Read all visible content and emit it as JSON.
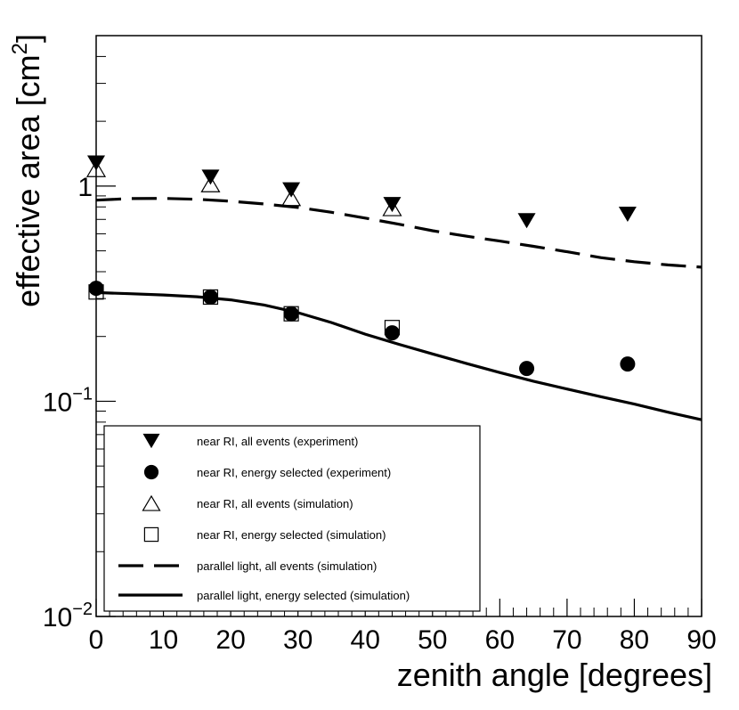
{
  "chart_data": {
    "type": "scatter",
    "title": "",
    "xlabel": "zenith angle [degrees]",
    "ylabel": "effective area [cm",
    "ylabel_sup": "2",
    "ylabel_close": "]",
    "xlim": [
      0,
      90
    ],
    "ylim": [
      0.01,
      5
    ],
    "yscale": "log",
    "grid": false,
    "legend_position": "bottom-left",
    "x_ticks": [
      0,
      10,
      20,
      30,
      40,
      50,
      60,
      70,
      80,
      90
    ],
    "x_tick_labels": [
      "0",
      "10",
      "20",
      "30",
      "40",
      "50",
      "60",
      "70",
      "80",
      "90"
    ],
    "y_ticks": [
      {
        "value": 1,
        "base": "1",
        "exp": ""
      },
      {
        "value": 0.1,
        "base": "10",
        "exp": "−1"
      },
      {
        "value": 0.01,
        "base": "10",
        "exp": "−2"
      }
    ],
    "series": [
      {
        "name": "near RI, all events (experiment)",
        "marker": "filled-triangle-down",
        "x": [
          0,
          17,
          29,
          44,
          64,
          79
        ],
        "y": [
          1.28,
          1.1,
          0.96,
          0.82,
          0.69,
          0.74
        ]
      },
      {
        "name": "near RI, energy selected (experiment)",
        "marker": "filled-circle",
        "x": [
          0,
          17,
          29,
          44,
          64,
          79
        ],
        "y": [
          0.335,
          0.305,
          0.255,
          0.208,
          0.142,
          0.149
        ]
      },
      {
        "name": "near RI, all events (simulation)",
        "marker": "open-triangle-up",
        "x": [
          0,
          17,
          29,
          44
        ],
        "y": [
          1.2,
          1.02,
          0.88,
          0.79
        ]
      },
      {
        "name": "near RI, energy selected (simulation)",
        "marker": "open-square",
        "x": [
          0,
          17,
          29,
          44
        ],
        "y": [
          0.322,
          0.305,
          0.255,
          0.22
        ]
      },
      {
        "name": "parallel light, all events (simulation)",
        "marker": "dashed-line",
        "x": [
          0,
          5,
          10,
          15,
          20,
          25,
          30,
          35,
          40,
          45,
          50,
          55,
          60,
          65,
          70,
          75,
          80,
          85,
          90
        ],
        "y": [
          0.86,
          0.875,
          0.876,
          0.868,
          0.85,
          0.825,
          0.795,
          0.755,
          0.71,
          0.665,
          0.62,
          0.585,
          0.555,
          0.525,
          0.495,
          0.465,
          0.445,
          0.43,
          0.42
        ]
      },
      {
        "name": "parallel light, energy selected (simulation)",
        "marker": "solid-line",
        "x": [
          0,
          5,
          10,
          15,
          20,
          25,
          30,
          35,
          40,
          45,
          50,
          55,
          60,
          65,
          70,
          75,
          80,
          85,
          90
        ],
        "y": [
          0.32,
          0.316,
          0.312,
          0.306,
          0.296,
          0.28,
          0.258,
          0.232,
          0.205,
          0.184,
          0.166,
          0.15,
          0.136,
          0.124,
          0.114,
          0.105,
          0.097,
          0.089,
          0.082
        ]
      }
    ]
  }
}
